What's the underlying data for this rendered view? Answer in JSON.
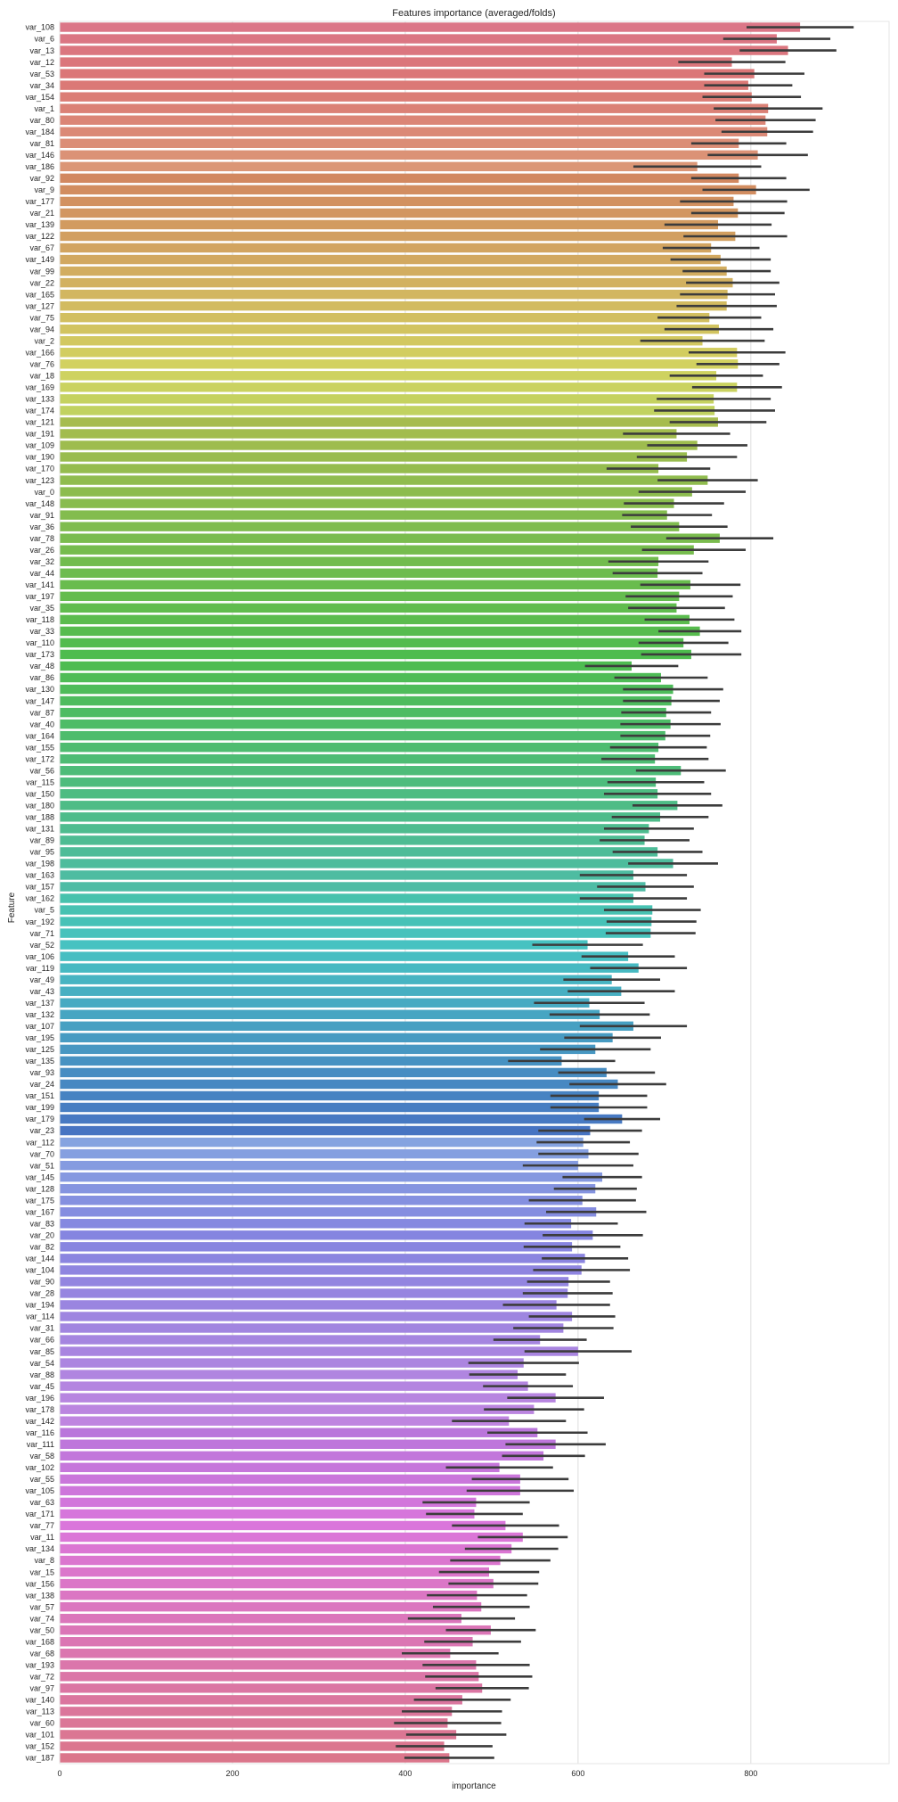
{
  "chart_data": {
    "type": "bar",
    "orientation": "horizontal",
    "title": "Features importance (averaged/folds)",
    "xlabel": "importance",
    "ylabel": "Feature",
    "xlim": [
      0,
      960
    ],
    "xticks": [
      0,
      200,
      400,
      600,
      800
    ],
    "grid": true,
    "legend": "none",
    "categories": [
      "var_108",
      "var_6",
      "var_13",
      "var_12",
      "var_53",
      "var_34",
      "var_154",
      "var_1",
      "var_80",
      "var_184",
      "var_81",
      "var_146",
      "var_186",
      "var_92",
      "var_9",
      "var_177",
      "var_21",
      "var_139",
      "var_122",
      "var_67",
      "var_149",
      "var_99",
      "var_22",
      "var_165",
      "var_127",
      "var_75",
      "var_94",
      "var_2",
      "var_166",
      "var_76",
      "var_18",
      "var_169",
      "var_133",
      "var_174",
      "var_121",
      "var_191",
      "var_109",
      "var_190",
      "var_170",
      "var_123",
      "var_0",
      "var_148",
      "var_91",
      "var_36",
      "var_78",
      "var_26",
      "var_32",
      "var_44",
      "var_141",
      "var_197",
      "var_35",
      "var_118",
      "var_33",
      "var_110",
      "var_173",
      "var_48",
      "var_86",
      "var_130",
      "var_147",
      "var_87",
      "var_40",
      "var_164",
      "var_155",
      "var_172",
      "var_56",
      "var_115",
      "var_150",
      "var_180",
      "var_188",
      "var_131",
      "var_89",
      "var_95",
      "var_198",
      "var_163",
      "var_157",
      "var_162",
      "var_5",
      "var_192",
      "var_71",
      "var_52",
      "var_106",
      "var_119",
      "var_49",
      "var_43",
      "var_137",
      "var_132",
      "var_107",
      "var_195",
      "var_125",
      "var_135",
      "var_93",
      "var_24",
      "var_151",
      "var_199",
      "var_179",
      "var_23",
      "var_112",
      "var_70",
      "var_51",
      "var_145",
      "var_128",
      "var_175",
      "var_167",
      "var_83",
      "var_20",
      "var_82",
      "var_144",
      "var_104",
      "var_90",
      "var_28",
      "var_194",
      "var_114",
      "var_31",
      "var_66",
      "var_85",
      "var_54",
      "var_88",
      "var_45",
      "var_196",
      "var_178",
      "var_142",
      "var_116",
      "var_111",
      "var_58",
      "var_102",
      "var_55",
      "var_105",
      "var_63",
      "var_171",
      "var_77",
      "var_11",
      "var_134",
      "var_8",
      "var_15",
      "var_156",
      "var_138",
      "var_57",
      "var_74",
      "var_50",
      "var_168",
      "var_68",
      "var_193",
      "var_72",
      "var_97",
      "var_140",
      "var_113",
      "var_60",
      "var_101",
      "var_152",
      "var_187"
    ],
    "values": [
      857,
      830,
      843,
      778,
      804,
      797,
      801,
      820,
      817,
      819,
      786,
      808,
      738,
      786,
      806,
      780,
      785,
      762,
      782,
      754,
      765,
      772,
      779,
      773,
      772,
      752,
      763,
      744,
      784,
      785,
      760,
      784,
      757,
      758,
      762,
      714,
      738,
      726,
      693,
      750,
      732,
      711,
      703,
      717,
      764,
      734,
      693,
      692,
      730,
      717,
      714,
      729,
      741,
      722,
      731,
      662,
      696,
      710,
      708,
      702,
      707,
      701,
      693,
      689,
      719,
      690,
      692,
      715,
      695,
      682,
      677,
      692,
      710,
      664,
      678,
      664,
      686,
      685,
      684,
      611,
      658,
      670,
      639,
      650,
      613,
      625,
      664,
      640,
      620,
      581,
      633,
      646,
      624,
      624,
      651,
      614,
      606,
      612,
      600,
      628,
      620,
      605,
      621,
      592,
      617,
      593,
      608,
      604,
      589,
      588,
      575,
      593,
      583,
      556,
      600,
      537,
      530,
      542,
      574,
      549,
      520,
      553,
      574,
      560,
      509,
      533,
      533,
      482,
      480,
      516,
      536,
      523,
      510,
      497,
      502,
      483,
      488,
      465,
      499,
      478,
      452,
      482,
      485,
      489,
      466,
      454,
      449,
      459,
      445,
      451
    ],
    "errors": [
      62,
      62,
      56,
      62,
      58,
      51,
      57,
      63,
      58,
      53,
      55,
      58,
      74,
      55,
      62,
      62,
      54,
      62,
      60,
      56,
      58,
      51,
      54,
      55,
      58,
      60,
      63,
      72,
      56,
      48,
      54,
      52,
      66,
      70,
      56,
      62,
      58,
      58,
      60,
      58,
      62,
      58,
      52,
      56,
      62,
      60,
      58,
      52,
      58,
      62,
      56,
      52,
      48,
      52,
      58,
      54,
      54,
      58,
      56,
      52,
      58,
      52,
      56,
      62,
      52,
      56,
      62,
      52,
      56,
      52,
      52,
      52,
      52,
      62,
      56,
      62,
      56,
      52,
      52,
      64,
      54,
      56,
      56,
      62,
      64,
      58,
      62,
      56,
      64,
      62,
      56,
      56,
      56,
      56,
      44,
      60,
      54,
      58,
      64,
      46,
      48,
      62,
      58,
      54,
      58,
      56,
      50,
      56,
      48,
      52,
      62,
      50,
      58,
      54,
      62,
      64,
      56,
      52,
      56,
      58,
      66,
      58,
      58,
      48,
      62,
      56,
      62,
      62,
      56,
      62,
      52,
      54,
      58,
      58,
      52,
      58,
      56,
      62,
      52,
      56,
      56,
      62,
      62,
      54,
      56,
      58,
      62,
      58,
      56,
      52
    ]
  }
}
